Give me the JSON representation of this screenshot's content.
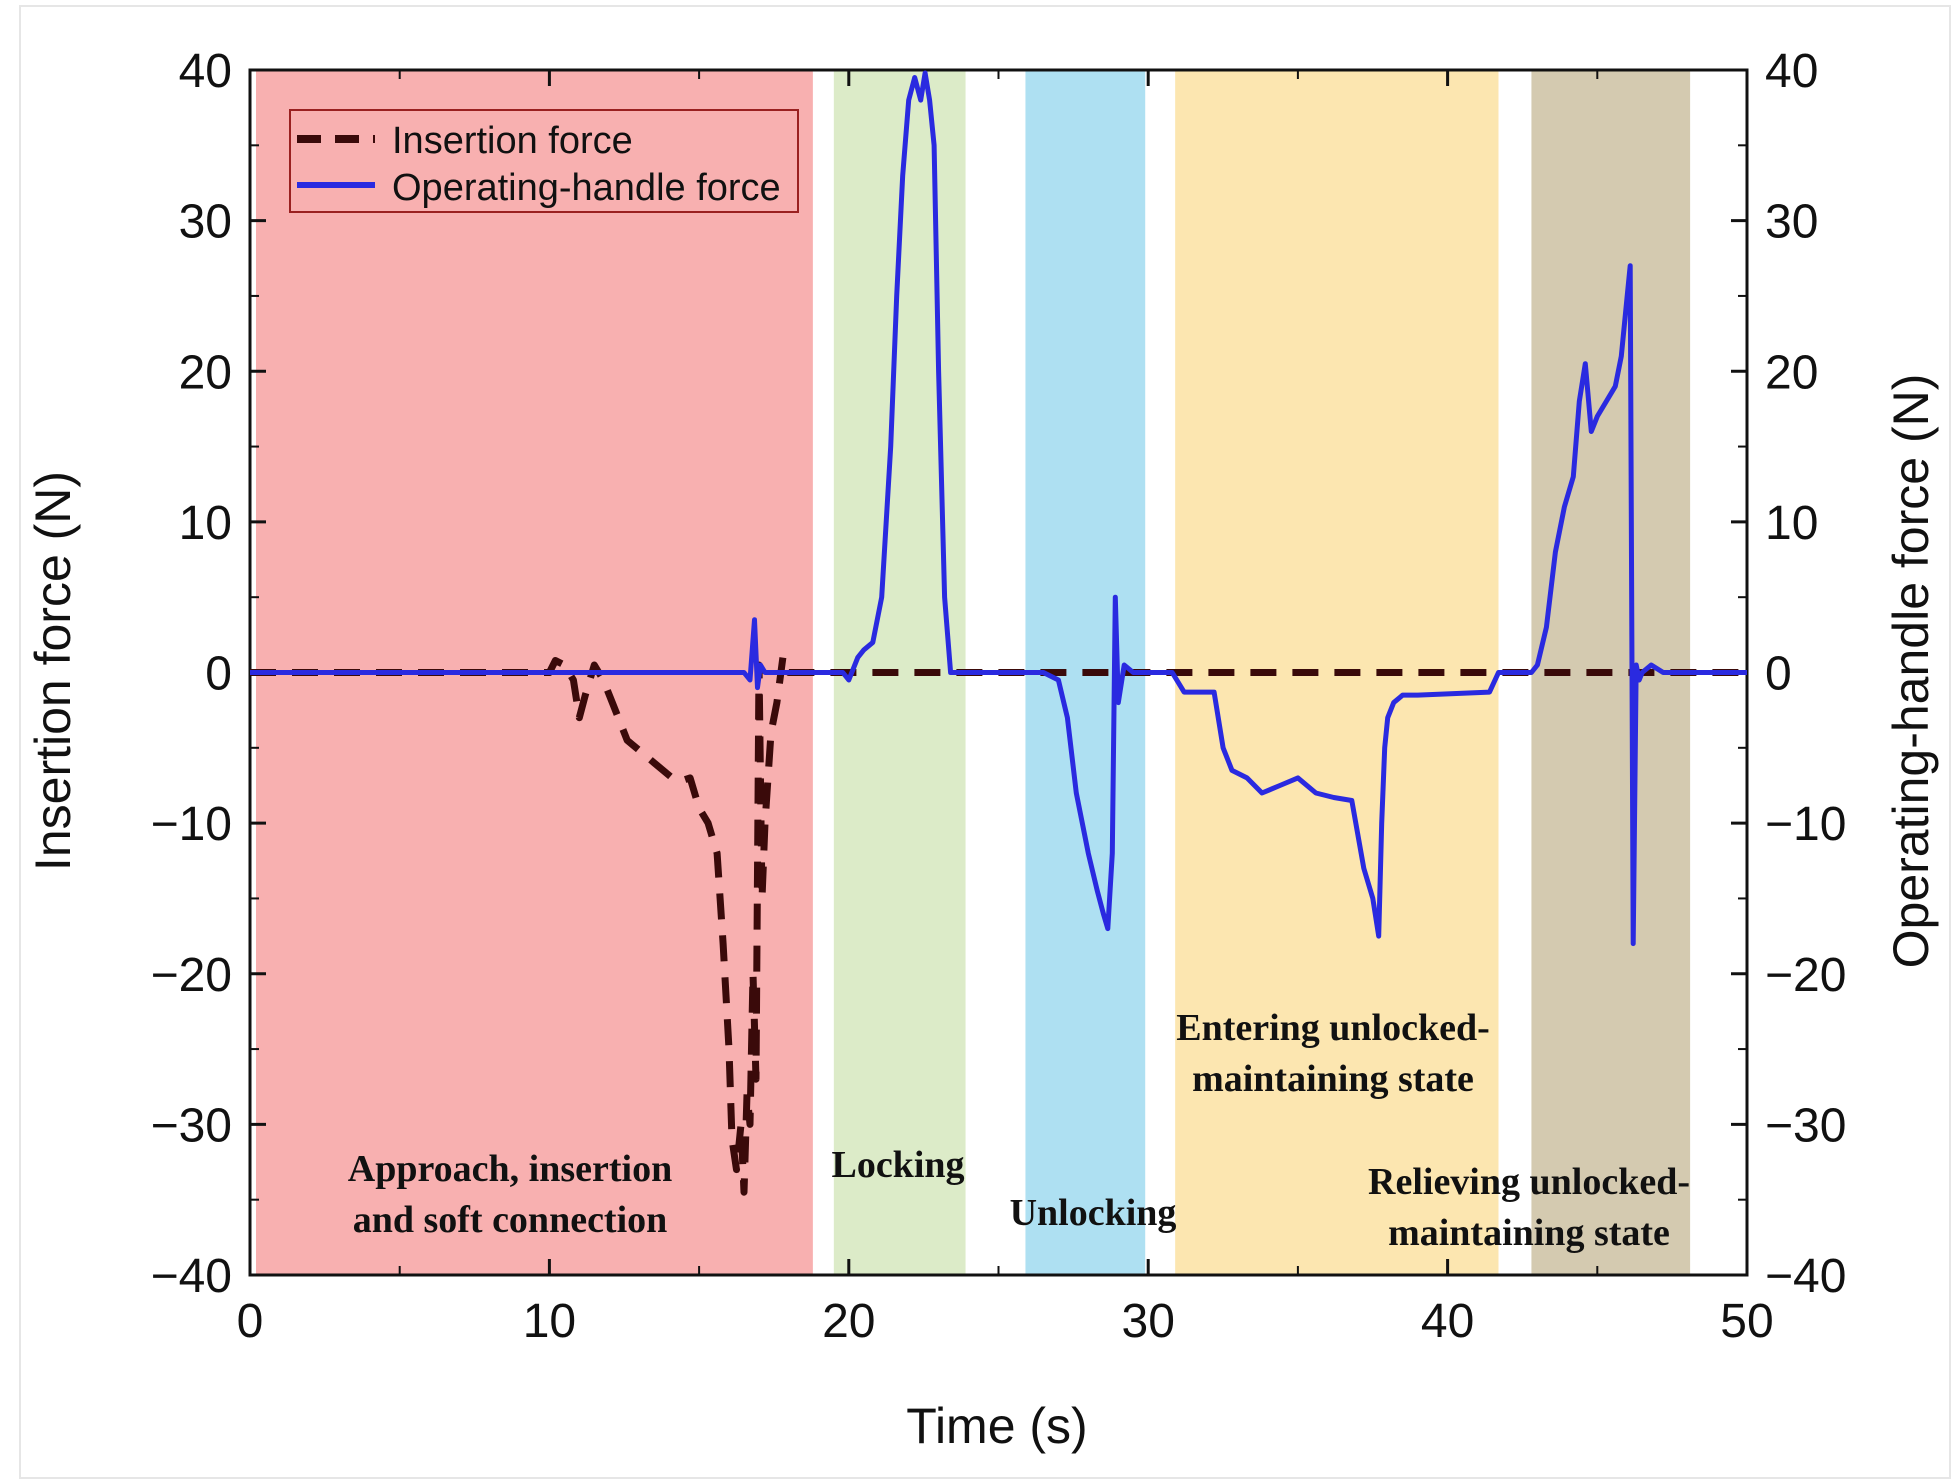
{
  "chart_data": {
    "type": "line",
    "title": "",
    "xlabel": "Time (s)",
    "ylabel_left": "Insertion force (N)",
    "ylabel_right": "Operating-handle force (N)",
    "xlim": [
      0,
      50
    ],
    "ylim": [
      -40,
      40
    ],
    "x_ticks": [
      0,
      10,
      20,
      30,
      40,
      50
    ],
    "y_ticks": [
      -40,
      -30,
      -20,
      -10,
      0,
      10,
      20,
      30,
      40
    ],
    "x_tick_labels": [
      "0",
      "10",
      "20",
      "30",
      "40",
      "50"
    ],
    "y_tick_labels": [
      "−40",
      "−30",
      "−20",
      "−10",
      "0",
      "10",
      "20",
      "30",
      "40"
    ],
    "legend": {
      "position": "top-left",
      "entries": [
        {
          "label": "Insertion force",
          "style": "dashed",
          "color": "#3a0a0a"
        },
        {
          "label": "Operating-handle force",
          "style": "solid",
          "color": "#2a2ae0"
        }
      ]
    },
    "phases": [
      {
        "name": "approach",
        "label_lines": [
          "Approach, insertion",
          "and soft connection"
        ],
        "x_start": 0.2,
        "x_end": 18.8,
        "color": "#f8b0b0"
      },
      {
        "name": "locking",
        "label_lines": [
          "Locking"
        ],
        "x_start": 19.5,
        "x_end": 23.9,
        "color": "#dcebc8"
      },
      {
        "name": "unlocking",
        "label_lines": [
          "Unlocking"
        ],
        "x_start": 25.9,
        "x_end": 29.9,
        "color": "#aee0f2"
      },
      {
        "name": "entering",
        "label_lines": [
          "Entering unlocked-",
          "maintaining state"
        ],
        "x_start": 30.9,
        "x_end": 41.7,
        "color": "#fce6b0"
      },
      {
        "name": "relieving",
        "label_lines": [
          "Relieving unlocked-",
          "maintaining state"
        ],
        "x_start": 42.8,
        "x_end": 48.1,
        "color": "#d4cab0"
      }
    ],
    "series": [
      {
        "name": "Insertion force",
        "axis": "left",
        "color": "#3a0a0a",
        "x": [
          0,
          10,
          10.2,
          10.5,
          10.8,
          11.0,
          11.2,
          11.5,
          11.8,
          12.1,
          12.3,
          12.6,
          12.9,
          13.2,
          13.5,
          13.8,
          14.1,
          14.4,
          14.7,
          15.0,
          15.3,
          15.6,
          15.8,
          16.0,
          16.1,
          16.25,
          16.4,
          16.5,
          16.6,
          16.7,
          16.8,
          16.9,
          17.0,
          17.1,
          17.2,
          17.4,
          17.6,
          17.8,
          18.0,
          18.4,
          50
        ],
        "y": [
          0,
          0,
          0.8,
          0.5,
          -0.5,
          -3.0,
          -1.5,
          0.5,
          -0.5,
          -2.0,
          -3.0,
          -4.5,
          -5.0,
          -5.5,
          -6.0,
          -6.5,
          -7.0,
          -7.2,
          -7.0,
          -9.0,
          -10.0,
          -12.0,
          -18.0,
          -25.0,
          -31.0,
          -33.0,
          -30.0,
          -34.5,
          -28.0,
          -30.0,
          -20.0,
          -27.0,
          0.5,
          -15.0,
          -10.0,
          -4.0,
          -2.0,
          1.0,
          0,
          0,
          0
        ]
      },
      {
        "name": "Operating-handle force",
        "axis": "right",
        "color": "#2a2ae0",
        "x": [
          0,
          16.5,
          16.7,
          16.85,
          16.95,
          17.05,
          17.2,
          17.5,
          19.8,
          20.0,
          20.3,
          20.5,
          20.8,
          21.1,
          21.4,
          21.6,
          21.8,
          22.0,
          22.2,
          22.4,
          22.55,
          22.7,
          22.85,
          23.0,
          23.2,
          23.4,
          23.6,
          24.0,
          26.5,
          27.0,
          27.3,
          27.6,
          28.0,
          28.3,
          28.5,
          28.65,
          28.8,
          28.9,
          29.0,
          29.2,
          29.5,
          30.8,
          31.2,
          32.2,
          32.5,
          32.8,
          33.3,
          33.8,
          34.4,
          35.0,
          35.6,
          36.2,
          36.8,
          37.2,
          37.5,
          37.7,
          37.8,
          37.9,
          38.0,
          38.2,
          38.5,
          39.0,
          41.4,
          41.7,
          42.8,
          43.0,
          43.3,
          43.6,
          43.9,
          44.2,
          44.4,
          44.6,
          44.8,
          45.0,
          45.3,
          45.6,
          45.8,
          46.0,
          46.1,
          46.2,
          46.3,
          46.4,
          46.5,
          46.8,
          47.2,
          50
        ],
        "y": [
          0,
          0,
          -0.5,
          3.5,
          -1.0,
          0.5,
          0,
          0,
          0,
          -0.5,
          1.0,
          1.5,
          2.0,
          5.0,
          15.0,
          25.0,
          33.0,
          38.0,
          39.5,
          38.0,
          39.8,
          38.0,
          35.0,
          20.0,
          5.0,
          0,
          0,
          0,
          0,
          -0.5,
          -3.0,
          -8.0,
          -12.0,
          -14.5,
          -16.0,
          -17.0,
          -12.0,
          5.0,
          -2.0,
          0.5,
          0,
          0,
          -1.3,
          -1.3,
          -5.0,
          -6.5,
          -7.0,
          -8.0,
          -7.5,
          -7.0,
          -8.0,
          -8.3,
          -8.5,
          -13.0,
          -15.0,
          -17.5,
          -10.0,
          -5.0,
          -3.0,
          -2.0,
          -1.5,
          -1.5,
          -1.3,
          0,
          0,
          0.5,
          3.0,
          8.0,
          11.0,
          13.0,
          18.0,
          20.5,
          16.0,
          17.0,
          18.0,
          19.0,
          21.0,
          25.0,
          27.0,
          -18.0,
          0.5,
          -0.5,
          0,
          0.5,
          0,
          0
        ]
      }
    ]
  }
}
